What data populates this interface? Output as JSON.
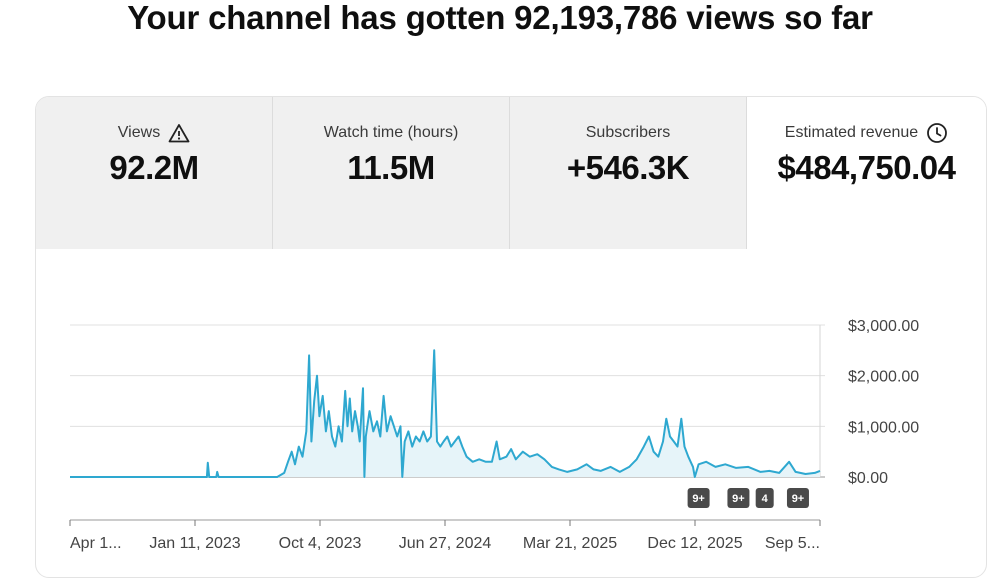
{
  "headline": "Your channel has gotten 92,193,786 views so far",
  "tabs": [
    {
      "label": "Views",
      "value": "92.2M",
      "icon": "warning-icon"
    },
    {
      "label": "Watch time (hours)",
      "value": "11.5M"
    },
    {
      "label": "Subscribers",
      "value": "+546.3K"
    },
    {
      "label": "Estimated revenue",
      "value": "$484,750.04",
      "icon": "clock-icon",
      "active": true
    }
  ],
  "chart_data": {
    "type": "area",
    "title": "",
    "ylabel": "",
    "xlabel": "",
    "ylim": [
      0,
      3000
    ],
    "y_ticks": [
      "$3,000.00",
      "$2,000.00",
      "$1,000.00",
      "$0.00"
    ],
    "x_ticks": [
      "Apr 1...",
      "Jan 11, 2023",
      "Oct 4, 2023",
      "Jun 27, 2024",
      "Mar 21, 2025",
      "Dec 12, 2025",
      "Sep 5..."
    ],
    "x_range": [
      "2022-04-19",
      "2026-09-05"
    ],
    "series": [
      {
        "points": [
          [
            "2022-04-19",
            0
          ],
          [
            "2022-09-01",
            0
          ],
          [
            "2023-02-05",
            0
          ],
          [
            "2023-02-07",
            280
          ],
          [
            "2023-02-10",
            0
          ],
          [
            "2023-02-25",
            0
          ],
          [
            "2023-02-27",
            100
          ],
          [
            "2023-03-02",
            0
          ],
          [
            "2023-07-05",
            0
          ],
          [
            "2023-07-20",
            80
          ],
          [
            "2023-07-28",
            300
          ],
          [
            "2023-08-05",
            500
          ],
          [
            "2023-08-12",
            250
          ],
          [
            "2023-08-20",
            600
          ],
          [
            "2023-08-28",
            400
          ],
          [
            "2023-09-05",
            900
          ],
          [
            "2023-09-11",
            2400
          ],
          [
            "2023-09-16",
            700
          ],
          [
            "2023-09-22",
            1500
          ],
          [
            "2023-09-28",
            2000
          ],
          [
            "2023-10-03",
            1200
          ],
          [
            "2023-10-10",
            1600
          ],
          [
            "2023-10-17",
            900
          ],
          [
            "2023-10-23",
            1300
          ],
          [
            "2023-10-30",
            800
          ],
          [
            "2023-11-06",
            600
          ],
          [
            "2023-11-13",
            1000
          ],
          [
            "2023-11-20",
            700
          ],
          [
            "2023-11-27",
            1700
          ],
          [
            "2023-12-02",
            1000
          ],
          [
            "2023-12-07",
            1550
          ],
          [
            "2023-12-12",
            900
          ],
          [
            "2023-12-18",
            1300
          ],
          [
            "2023-12-24",
            1000
          ],
          [
            "2023-12-28",
            700
          ],
          [
            "2024-01-04",
            1750
          ],
          [
            "2024-01-07",
            0
          ],
          [
            "2024-01-10",
            800
          ],
          [
            "2024-01-18",
            1300
          ],
          [
            "2024-01-26",
            900
          ],
          [
            "2024-02-03",
            1100
          ],
          [
            "2024-02-10",
            800
          ],
          [
            "2024-02-17",
            1600
          ],
          [
            "2024-02-24",
            900
          ],
          [
            "2024-03-03",
            1200
          ],
          [
            "2024-03-10",
            1000
          ],
          [
            "2024-03-17",
            800
          ],
          [
            "2024-03-24",
            1000
          ],
          [
            "2024-03-28",
            0
          ],
          [
            "2024-04-02",
            700
          ],
          [
            "2024-04-10",
            900
          ],
          [
            "2024-04-18",
            600
          ],
          [
            "2024-04-26",
            800
          ],
          [
            "2024-05-04",
            700
          ],
          [
            "2024-05-12",
            900
          ],
          [
            "2024-05-20",
            700
          ],
          [
            "2024-05-28",
            800
          ],
          [
            "2024-06-04",
            2500
          ],
          [
            "2024-06-10",
            700
          ],
          [
            "2024-06-17",
            600
          ],
          [
            "2024-06-24",
            700
          ],
          [
            "2024-07-02",
            800
          ],
          [
            "2024-07-10",
            600
          ],
          [
            "2024-07-18",
            700
          ],
          [
            "2024-07-26",
            800
          ],
          [
            "2024-08-03",
            600
          ],
          [
            "2024-08-12",
            400
          ],
          [
            "2024-08-25",
            300
          ],
          [
            "2024-09-08",
            350
          ],
          [
            "2024-09-22",
            300
          ],
          [
            "2024-10-05",
            300
          ],
          [
            "2024-10-15",
            700
          ],
          [
            "2024-10-22",
            350
          ],
          [
            "2024-11-05",
            400
          ],
          [
            "2024-11-15",
            550
          ],
          [
            "2024-11-25",
            350
          ],
          [
            "2024-12-10",
            500
          ],
          [
            "2024-12-25",
            400
          ],
          [
            "2025-01-10",
            450
          ],
          [
            "2025-01-25",
            350
          ],
          [
            "2025-02-10",
            200
          ],
          [
            "2025-02-25",
            150
          ],
          [
            "2025-03-15",
            100
          ],
          [
            "2025-04-05",
            150
          ],
          [
            "2025-04-25",
            250
          ],
          [
            "2025-05-10",
            150
          ],
          [
            "2025-05-25",
            120
          ],
          [
            "2025-06-15",
            200
          ],
          [
            "2025-07-05",
            100
          ],
          [
            "2025-07-25",
            200
          ],
          [
            "2025-08-10",
            350
          ],
          [
            "2025-08-25",
            600
          ],
          [
            "2025-09-05",
            800
          ],
          [
            "2025-09-15",
            500
          ],
          [
            "2025-09-25",
            400
          ],
          [
            "2025-10-05",
            700
          ],
          [
            "2025-10-12",
            1150
          ],
          [
            "2025-10-20",
            800
          ],
          [
            "2025-10-28",
            700
          ],
          [
            "2025-11-05",
            600
          ],
          [
            "2025-11-13",
            1150
          ],
          [
            "2025-11-20",
            600
          ],
          [
            "2025-11-28",
            400
          ],
          [
            "2025-12-08",
            200
          ],
          [
            "2025-12-12",
            0
          ],
          [
            "2025-12-20",
            250
          ],
          [
            "2026-01-05",
            300
          ],
          [
            "2026-01-25",
            200
          ],
          [
            "2026-02-15",
            250
          ],
          [
            "2026-03-10",
            180
          ],
          [
            "2026-04-05",
            200
          ],
          [
            "2026-05-01",
            100
          ],
          [
            "2026-05-20",
            120
          ],
          [
            "2026-06-10",
            80
          ],
          [
            "2026-07-01",
            300
          ],
          [
            "2026-07-15",
            100
          ],
          [
            "2026-08-05",
            60
          ],
          [
            "2026-08-25",
            80
          ],
          [
            "2026-09-05",
            120
          ]
        ]
      }
    ],
    "annotation_badges": [
      {
        "date": "2025-12-20",
        "text": "9+"
      },
      {
        "date": "2026-03-15",
        "text": "9+"
      },
      {
        "date": "2026-05-10",
        "text": "4"
      },
      {
        "date": "2026-07-20",
        "text": "9+"
      }
    ],
    "colors": {
      "line": "#2ea8d0",
      "fill": "#e6f4f9",
      "grid": "#e0e0e0",
      "badge": "#4a4a4a"
    },
    "grid": true
  }
}
